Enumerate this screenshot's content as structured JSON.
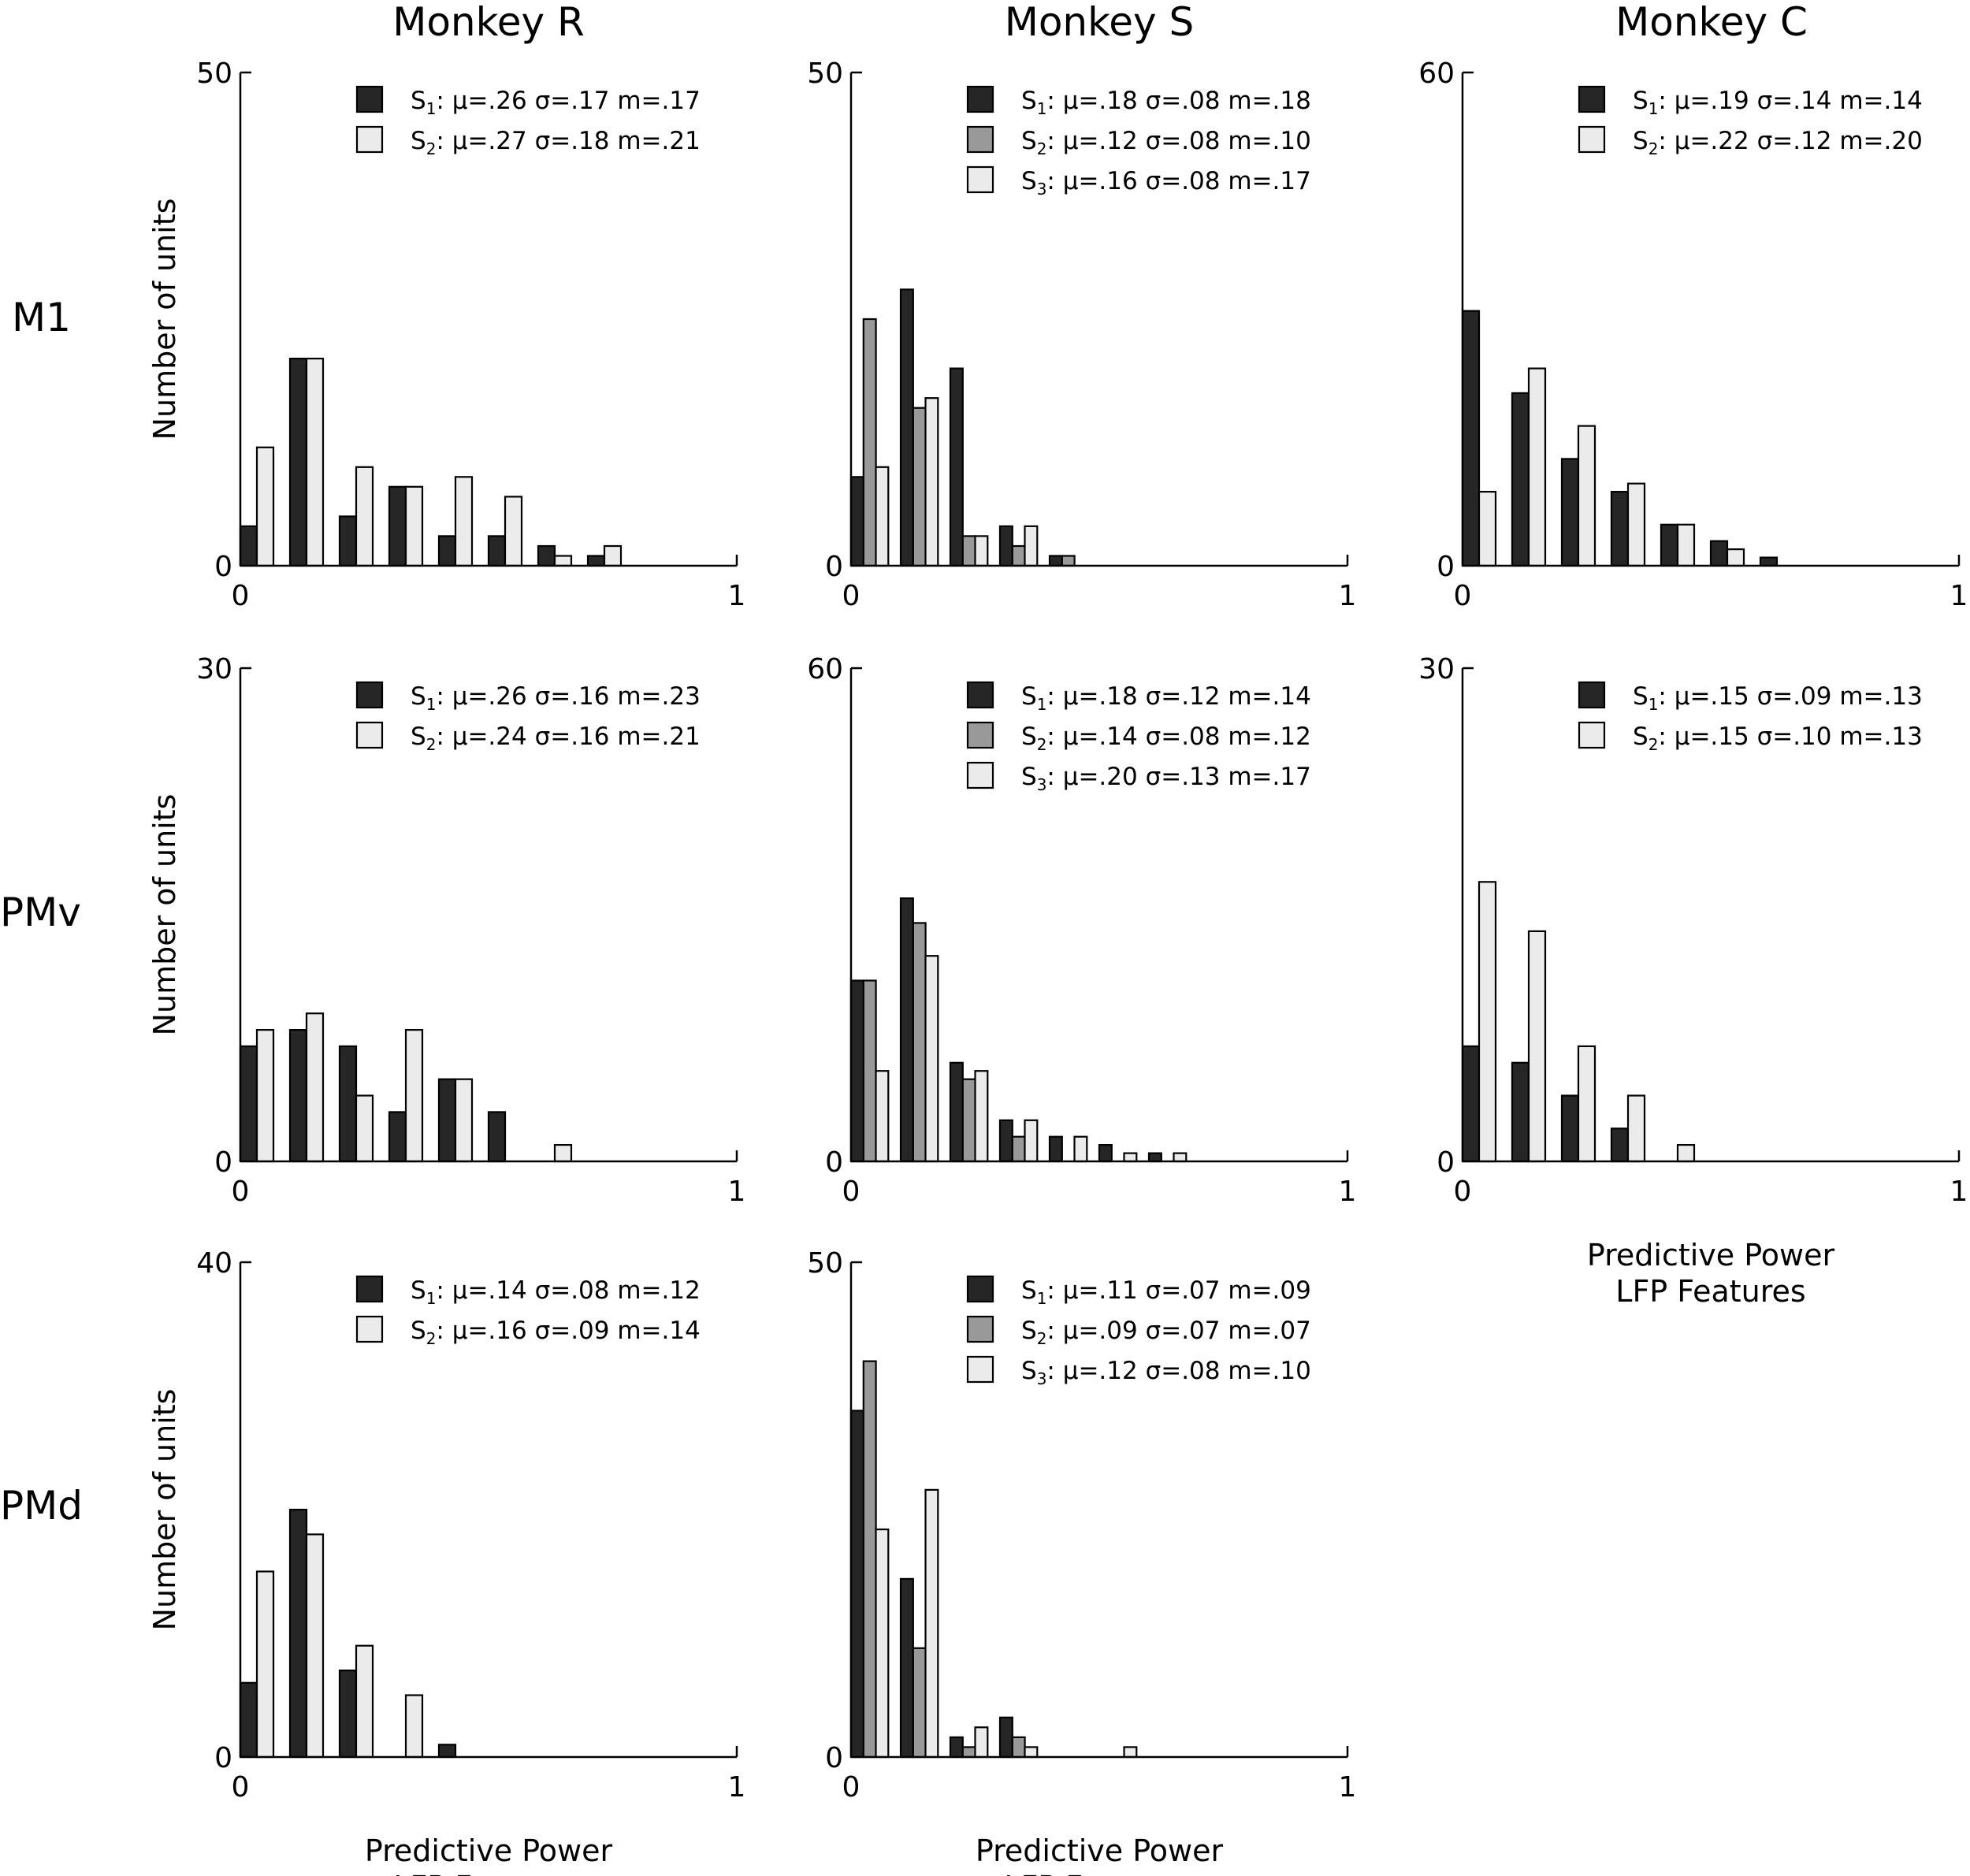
{
  "colors": {
    "s1": "#262626",
    "s2": "#999999",
    "s2_light": "#ebebeb",
    "s3": "#ebebeb"
  },
  "column_titles": [
    "Monkey R",
    "Monkey S",
    "Monkey C"
  ],
  "row_labels": [
    "M1",
    "PMv",
    "PMd"
  ],
  "ylabel": "Number of units",
  "xlabel_line1": "Predictive Power",
  "xlabel_line2": "LFP Features",
  "chart_data": [
    {
      "type": "bar",
      "id": "m1-r",
      "row": 0,
      "col": 0,
      "title": "Monkey R",
      "xlim": [
        0,
        1
      ],
      "ylim": [
        0,
        50
      ],
      "bin_width": 0.1,
      "xlabel": "",
      "ylabel": "Number of units",
      "series": [
        {
          "key": "s1",
          "name": "S",
          "sub": "1",
          "stats": ": μ=.26 σ=.17 m=.17",
          "color": "#262626",
          "values": [
            4,
            21,
            5,
            8,
            3,
            3,
            2,
            1
          ]
        },
        {
          "key": "s2",
          "name": "S",
          "sub": "2",
          "stats": ": μ=.27 σ=.18 m=.21",
          "color": "#ebebeb",
          "values": [
            12,
            21,
            10,
            8,
            9,
            7,
            1,
            2
          ]
        }
      ]
    },
    {
      "type": "bar",
      "id": "m1-s",
      "row": 0,
      "col": 1,
      "title": "Monkey S",
      "xlim": [
        0,
        1
      ],
      "ylim": [
        0,
        50
      ],
      "bin_width": 0.1,
      "xlabel": "",
      "ylabel": "",
      "series": [
        {
          "key": "s1",
          "name": "S",
          "sub": "1",
          "stats": ": μ=.18 σ=.08 m=.18",
          "color": "#262626",
          "values": [
            9,
            28,
            20,
            4,
            1
          ]
        },
        {
          "key": "s2",
          "name": "S",
          "sub": "2",
          "stats": ": μ=.12 σ=.08 m=.10",
          "color": "#999999",
          "values": [
            25,
            16,
            3,
            2,
            1
          ]
        },
        {
          "key": "s3",
          "name": "S",
          "sub": "3",
          "stats": ": μ=.16 σ=.08 m=.17",
          "color": "#ebebeb",
          "values": [
            10,
            17,
            3,
            4
          ]
        }
      ]
    },
    {
      "type": "bar",
      "id": "m1-c",
      "row": 0,
      "col": 2,
      "title": "Monkey C",
      "xlim": [
        0,
        1
      ],
      "ylim": [
        0,
        60
      ],
      "bin_width": 0.1,
      "xlabel": "",
      "ylabel": "",
      "series": [
        {
          "key": "s1",
          "name": "S",
          "sub": "1",
          "stats": ": μ=.19 σ=.14 m=.14",
          "color": "#262626",
          "values": [
            31,
            21,
            13,
            9,
            5,
            3,
            1
          ]
        },
        {
          "key": "s2",
          "name": "S",
          "sub": "2",
          "stats": ": μ=.22 σ=.12 m=.20",
          "color": "#ebebeb",
          "values": [
            9,
            24,
            17,
            10,
            5,
            2
          ]
        }
      ]
    },
    {
      "type": "bar",
      "id": "pmv-r",
      "row": 1,
      "col": 0,
      "title": "",
      "xlim": [
        0,
        1
      ],
      "ylim": [
        0,
        30
      ],
      "bin_width": 0.1,
      "xlabel": "",
      "ylabel": "Number of units",
      "series": [
        {
          "key": "s1",
          "name": "S",
          "sub": "1",
          "stats": ": μ=.26 σ=.16 m=.23",
          "color": "#262626",
          "values": [
            7,
            8,
            7,
            3,
            5,
            3,
            0
          ]
        },
        {
          "key": "s2",
          "name": "S",
          "sub": "2",
          "stats": ": μ=.24 σ=.16 m=.21",
          "color": "#ebebeb",
          "values": [
            8,
            9,
            4,
            8,
            5,
            0,
            1
          ]
        }
      ]
    },
    {
      "type": "bar",
      "id": "pmv-s",
      "row": 1,
      "col": 1,
      "title": "",
      "xlim": [
        0,
        1
      ],
      "ylim": [
        0,
        60
      ],
      "bin_width": 0.1,
      "xlabel": "",
      "ylabel": "",
      "series": [
        {
          "key": "s1",
          "name": "S",
          "sub": "1",
          "stats": ": μ=.18 σ=.12 m=.14",
          "color": "#262626",
          "values": [
            22,
            32,
            12,
            5,
            3,
            2,
            1
          ]
        },
        {
          "key": "s2",
          "name": "S",
          "sub": "2",
          "stats": ": μ=.14 σ=.08 m=.12",
          "color": "#999999",
          "values": [
            22,
            29,
            10,
            3,
            0,
            0,
            0
          ]
        },
        {
          "key": "s3",
          "name": "S",
          "sub": "3",
          "stats": ": μ=.20 σ=.13 m=.17",
          "color": "#ebebeb",
          "values": [
            11,
            25,
            11,
            5,
            3,
            1,
            1
          ]
        }
      ]
    },
    {
      "type": "bar",
      "id": "pmv-c",
      "row": 1,
      "col": 2,
      "title": "",
      "xlim": [
        0,
        1
      ],
      "ylim": [
        0,
        30
      ],
      "bin_width": 0.1,
      "xlabel": "Predictive Power LFP Features",
      "ylabel": "",
      "series": [
        {
          "key": "s1",
          "name": "S",
          "sub": "1",
          "stats": ": μ=.15 σ=.09 m=.13",
          "color": "#262626",
          "values": [
            7,
            6,
            4,
            2,
            0
          ]
        },
        {
          "key": "s2",
          "name": "S",
          "sub": "2",
          "stats": ": μ=.15 σ=.10 m=.13",
          "color": "#ebebeb",
          "values": [
            17,
            14,
            7,
            4,
            1
          ]
        }
      ]
    },
    {
      "type": "bar",
      "id": "pmd-r",
      "row": 2,
      "col": 0,
      "title": "",
      "xlim": [
        0,
        1
      ],
      "ylim": [
        0,
        40
      ],
      "bin_width": 0.1,
      "xlabel": "Predictive Power LFP Features",
      "ylabel": "Number of units",
      "series": [
        {
          "key": "s1",
          "name": "S",
          "sub": "1",
          "stats": ": μ=.14 σ=.08 m=.12",
          "color": "#262626",
          "values": [
            6,
            20,
            7,
            0,
            1
          ]
        },
        {
          "key": "s2",
          "name": "S",
          "sub": "2",
          "stats": ": μ=.16 σ=.09 m=.14",
          "color": "#ebebeb",
          "values": [
            15,
            18,
            9,
            5
          ]
        }
      ]
    },
    {
      "type": "bar",
      "id": "pmd-s",
      "row": 2,
      "col": 1,
      "title": "",
      "xlim": [
        0,
        1
      ],
      "ylim": [
        0,
        50
      ],
      "bin_width": 0.1,
      "xlabel": "Predictive Power LFP Features",
      "ylabel": "",
      "series": [
        {
          "key": "s1",
          "name": "S",
          "sub": "1",
          "stats": ": μ=.11 σ=.07 m=.09",
          "color": "#262626",
          "values": [
            35,
            18,
            2,
            4,
            0,
            0
          ]
        },
        {
          "key": "s2",
          "name": "S",
          "sub": "2",
          "stats": ": μ=.09 σ=.07 m=.07",
          "color": "#999999",
          "values": [
            40,
            11,
            1,
            2,
            0,
            0
          ]
        },
        {
          "key": "s3",
          "name": "S",
          "sub": "3",
          "stats": ": μ=.12 σ=.08 m=.10",
          "color": "#ebebeb",
          "values": [
            23,
            27,
            3,
            1,
            0,
            1
          ]
        }
      ]
    }
  ]
}
